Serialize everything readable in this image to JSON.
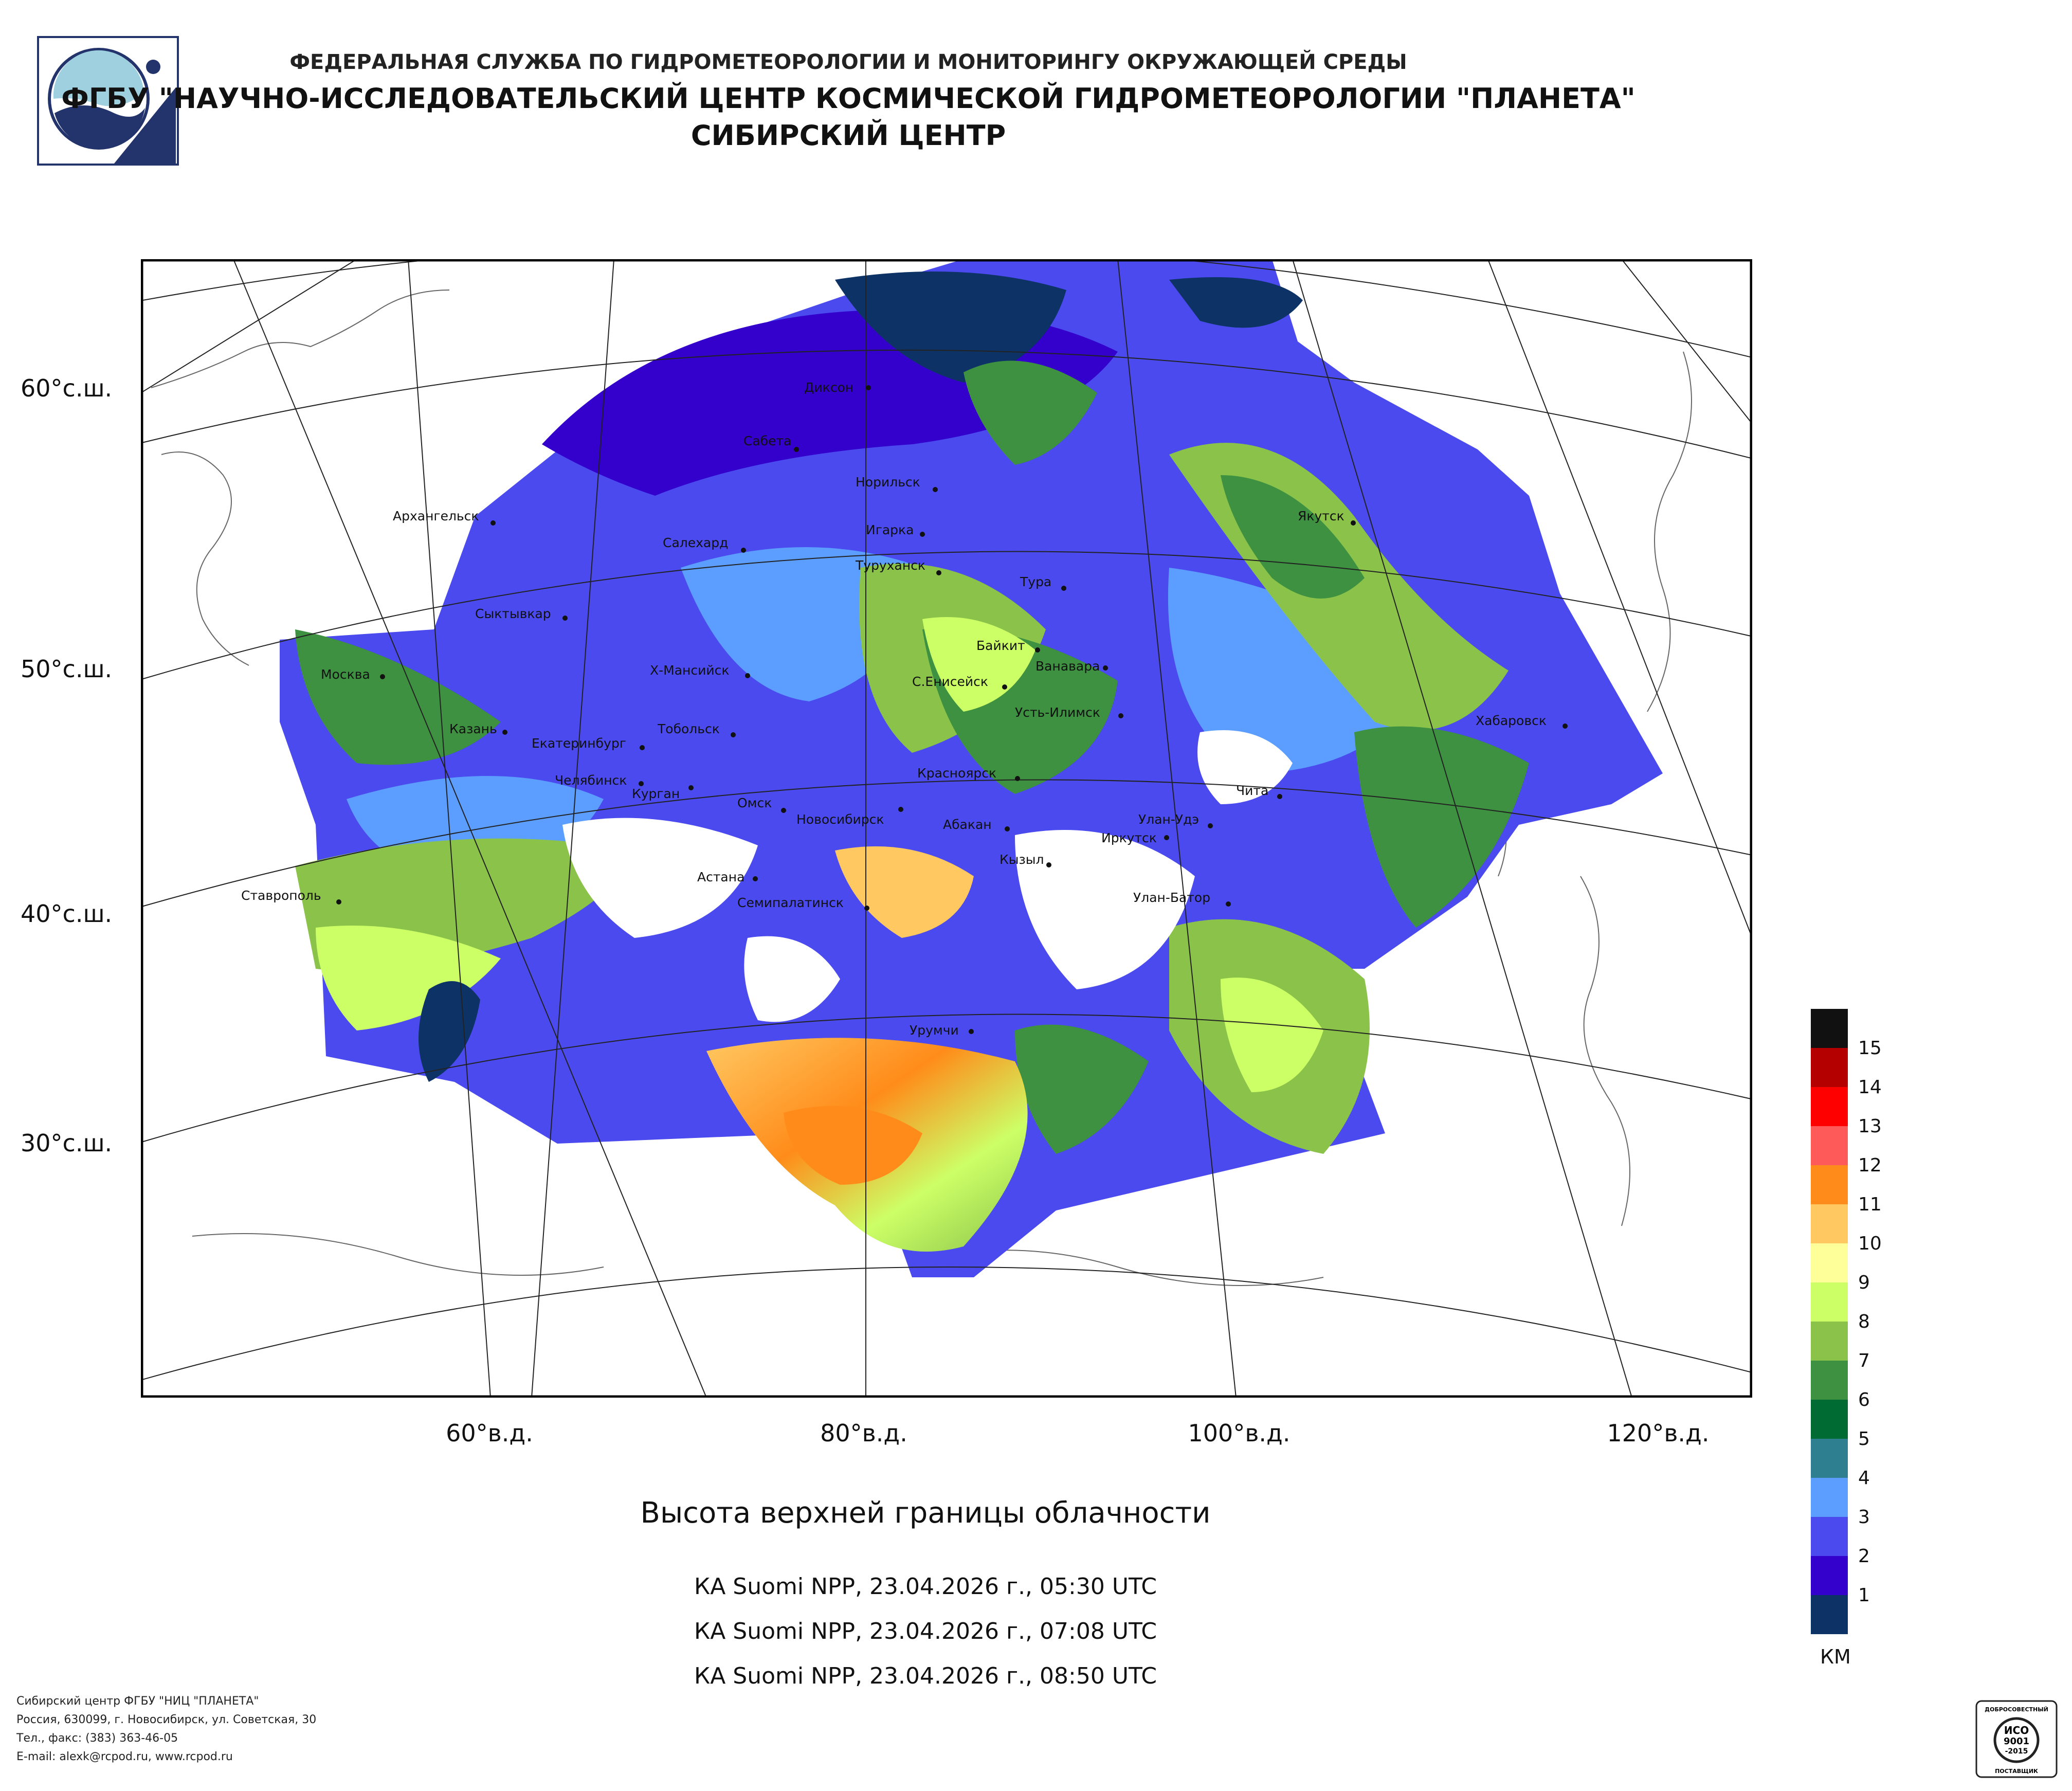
{
  "header": {
    "line1": "ФЕДЕРАЛЬНАЯ СЛУЖБА ПО ГИДРОМЕТЕОРОЛОГИИ И МОНИТОРИНГУ ОКРУЖАЮЩЕЙ СРЕДЫ",
    "line2": "ФГБУ \"НАУЧНО-ИССЛЕДОВАТЕЛЬСКИЙ ЦЕНТР КОСМИЧЕСКОЙ ГИДРОМЕТЕОРОЛОГИИ \"ПЛАНЕТА\"",
    "line3": "СИБИРСКИЙ ЦЕНТР"
  },
  "map": {
    "lat_labels": [
      "60°с.ш.",
      "50°с.ш.",
      "40°с.ш.",
      "30°с.ш."
    ],
    "lon_labels": [
      "60°в.д.",
      "80°в.д.",
      "100°в.д.",
      "120°в.д."
    ],
    "cities": [
      {
        "name": "Диксон"
      },
      {
        "name": "Сабета"
      },
      {
        "name": "Норильск"
      },
      {
        "name": "Архангельск"
      },
      {
        "name": "Салехард"
      },
      {
        "name": "Игарка"
      },
      {
        "name": "Туруханск"
      },
      {
        "name": "Тура"
      },
      {
        "name": "Якутск"
      },
      {
        "name": "Сыктывкар"
      },
      {
        "name": "Байкит"
      },
      {
        "name": "Ванавара"
      },
      {
        "name": "Москва"
      },
      {
        "name": "Х-Мансийск"
      },
      {
        "name": "С.Енисейск"
      },
      {
        "name": "Усть-Илимск"
      },
      {
        "name": "Казань"
      },
      {
        "name": "Тобольск"
      },
      {
        "name": "Хабаровск"
      },
      {
        "name": "Екатеринбург"
      },
      {
        "name": "Красноярск"
      },
      {
        "name": "Челябинск"
      },
      {
        "name": "Курган"
      },
      {
        "name": "Омск"
      },
      {
        "name": "Новосибирск"
      },
      {
        "name": "Чита"
      },
      {
        "name": "Абакан"
      },
      {
        "name": "Улан-Удэ"
      },
      {
        "name": "Иркутск"
      },
      {
        "name": "Кызыл"
      },
      {
        "name": "Астана"
      },
      {
        "name": "Ставрополь"
      },
      {
        "name": "Семипалатинск"
      },
      {
        "name": "Улан-Батор"
      },
      {
        "name": "Урумчи"
      }
    ]
  },
  "subtitle": "Высота верхней границы облачности",
  "passes": [
    "КА Suomi NPP, 23.04.2026 г., 05:30 UTC",
    "КА Suomi NPP, 23.04.2026 г., 07:08 UTC",
    "КА Suomi NPP, 23.04.2026 г., 08:50 UTC"
  ],
  "legend": {
    "unit": "КМ",
    "items": [
      {
        "label": "15",
        "color": "#111111"
      },
      {
        "label": "14",
        "color": "#b50000"
      },
      {
        "label": "13",
        "color": "#ff0000"
      },
      {
        "label": "12",
        "color": "#ff5a5a"
      },
      {
        "label": "11",
        "color": "#ff8c1a"
      },
      {
        "label": "10",
        "color": "#ffc861"
      },
      {
        "label": "9",
        "color": "#ffff99"
      },
      {
        "label": "8",
        "color": "#ccff66"
      },
      {
        "label": "7",
        "color": "#8bc34a"
      },
      {
        "label": "6",
        "color": "#3d9140"
      },
      {
        "label": "5",
        "color": "#006b33"
      },
      {
        "label": "4",
        "color": "#2e8090"
      },
      {
        "label": "3",
        "color": "#5c9eff"
      },
      {
        "label": "2",
        "color": "#4a4aee"
      },
      {
        "label": "1",
        "color": "#3300cc"
      },
      {
        "label": "",
        "color": "#0d3366"
      }
    ]
  },
  "footer": {
    "line1": "Сибирский центр ФГБУ \"НИЦ \"ПЛАНЕТА\"",
    "line2": "Россия, 630099, г. Новосибирск, ул. Советская, 30",
    "line3": "Тел., факс: (383) 363-46-05",
    "line4": "E-mail: alexk@rcpod.ru, www.rcpod.ru"
  },
  "certificate": {
    "top": "ДОБРОСОВЕСТНЫЙ",
    "mid1": "ИСО",
    "mid2": "9001",
    "mid3": "-2015",
    "bottom": "ПОСТАВЩИК"
  }
}
